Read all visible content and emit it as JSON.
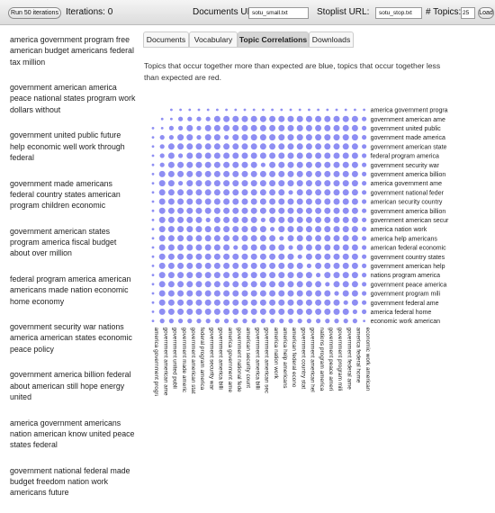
{
  "toolbar": {
    "run_button": "Run 50 iterations",
    "iterations_text": "Iterations: 0",
    "documents_url_label": "Documents URL:",
    "documents_url_value": "sotu_small.txt",
    "stoplist_url_label": "Stoplist URL:",
    "stoplist_url_value": "sotu_stop.txt",
    "num_topics_label": "# Topics:",
    "num_topics_value": "25",
    "load_button": "Load"
  },
  "topics": [
    "america government program free american budget americans federal tax million",
    "government american america peace national states program work dollars without",
    "government united public future help economic well work through federal",
    "government made americans federal country states american program children economic",
    "government american states program america fiscal budget about over million",
    "federal program america american americans made nation economic home economy",
    "government security war nations america american states economic peace policy",
    "government america billion federal about american still hope energy united",
    "america government americans nation american know united peace states federal",
    "government national federal made budget freedom nation work americans future"
  ],
  "tabs": [
    {
      "label": "Documents",
      "active": false
    },
    {
      "label": "Vocabulary",
      "active": false
    },
    {
      "label": "Topic Correlations",
      "active": true
    },
    {
      "label": "Downloads",
      "active": false
    }
  ],
  "description": "Topics that occur together more than expected are blue, topics that occur together less than expected are red.",
  "correlation": {
    "dot_color": "#8e8ef3",
    "row_labels": [
      "america government progra",
      "government american ame",
      "government united public",
      "government made america",
      "government american state",
      "federal program america",
      "government security war",
      "government america billion",
      "america government ame",
      "government national feder",
      "american security country",
      "government america billion",
      "government american secur",
      "america nation work",
      "america help americans",
      "american federal economic",
      "government country states",
      "government american help",
      "nations program america",
      "government peace america",
      "government program mili",
      "government federal ame",
      "america federal home",
      "economic work american"
    ],
    "col_labels": [
      "america government progra",
      "government american ame",
      "government united publi",
      "government made americ",
      "government american stat",
      "federal program america",
      "government security war",
      "government america billi",
      "america government ame",
      "government national fede",
      "american security count",
      "government america billi",
      "government american sec",
      "america nation work",
      "america help americans",
      "american federal econo",
      "government country stat",
      "government american hel",
      "nations program america",
      "government peace ameri",
      "government program mili",
      "government federal ame",
      "america federal home",
      "economic work american"
    ],
    "values": [
      [
        0,
        0,
        1,
        1,
        1,
        1,
        1,
        1,
        1,
        1,
        1,
        1,
        1,
        1,
        1,
        1,
        1,
        1,
        1,
        1,
        1,
        1,
        1,
        1
      ],
      [
        0,
        1,
        1,
        2,
        2,
        2,
        2,
        3,
        3,
        3,
        3,
        3,
        3,
        3,
        3,
        3,
        3,
        3,
        3,
        3,
        3,
        3,
        3,
        2
      ],
      [
        1,
        1,
        2,
        2,
        3,
        2,
        3,
        3,
        3,
        3,
        3,
        3,
        3,
        3,
        3,
        3,
        3,
        3,
        3,
        3,
        3,
        3,
        3,
        2
      ],
      [
        1,
        2,
        2,
        3,
        3,
        2,
        3,
        3,
        2,
        3,
        3,
        3,
        3,
        3,
        3,
        3,
        3,
        3,
        3,
        3,
        3,
        3,
        3,
        2
      ],
      [
        1,
        2,
        3,
        3,
        3,
        3,
        3,
        3,
        3,
        3,
        3,
        3,
        3,
        3,
        3,
        3,
        3,
        3,
        3,
        3,
        3,
        3,
        3,
        2
      ],
      [
        1,
        2,
        3,
        2,
        3,
        3,
        3,
        3,
        3,
        3,
        3,
        3,
        3,
        3,
        3,
        3,
        3,
        3,
        3,
        3,
        3,
        3,
        3,
        2
      ],
      [
        1,
        2,
        3,
        3,
        3,
        3,
        3,
        3,
        3,
        3,
        3,
        3,
        2,
        3,
        3,
        3,
        3,
        3,
        3,
        3,
        3,
        3,
        3,
        2
      ],
      [
        1,
        3,
        3,
        3,
        3,
        3,
        3,
        3,
        3,
        3,
        3,
        3,
        3,
        3,
        3,
        3,
        3,
        3,
        3,
        3,
        3,
        3,
        3,
        2
      ],
      [
        1,
        3,
        3,
        2,
        3,
        3,
        3,
        3,
        3,
        3,
        3,
        3,
        3,
        3,
        3,
        3,
        3,
        3,
        3,
        3,
        3,
        3,
        3,
        2
      ],
      [
        1,
        3,
        3,
        3,
        3,
        3,
        3,
        3,
        3,
        3,
        3,
        3,
        3,
        3,
        3,
        2,
        3,
        3,
        3,
        3,
        3,
        3,
        3,
        2
      ],
      [
        1,
        3,
        3,
        3,
        3,
        3,
        3,
        3,
        3,
        3,
        3,
        3,
        3,
        3,
        3,
        3,
        3,
        3,
        3,
        3,
        3,
        3,
        3,
        2
      ],
      [
        1,
        3,
        3,
        3,
        3,
        3,
        3,
        3,
        3,
        3,
        3,
        3,
        3,
        3,
        3,
        3,
        3,
        3,
        3,
        3,
        3,
        3,
        3,
        2
      ],
      [
        1,
        3,
        3,
        3,
        3,
        3,
        2,
        3,
        3,
        3,
        3,
        3,
        2,
        3,
        3,
        3,
        3,
        3,
        3,
        3,
        3,
        3,
        3,
        2
      ],
      [
        1,
        3,
        3,
        3,
        3,
        3,
        3,
        3,
        3,
        3,
        3,
        3,
        3,
        2,
        3,
        3,
        3,
        3,
        3,
        3,
        3,
        3,
        3,
        2
      ],
      [
        1,
        3,
        3,
        3,
        3,
        3,
        3,
        3,
        3,
        3,
        3,
        3,
        3,
        3,
        2,
        3,
        3,
        3,
        3,
        3,
        3,
        3,
        3,
        2
      ],
      [
        1,
        3,
        3,
        3,
        3,
        3,
        3,
        3,
        3,
        2,
        3,
        3,
        3,
        3,
        3,
        2,
        3,
        3,
        3,
        3,
        3,
        3,
        3,
        2
      ],
      [
        1,
        3,
        3,
        3,
        3,
        3,
        3,
        3,
        3,
        3,
        3,
        3,
        3,
        3,
        3,
        3,
        2,
        3,
        3,
        3,
        3,
        3,
        3,
        2
      ],
      [
        1,
        3,
        3,
        3,
        3,
        3,
        3,
        3,
        3,
        3,
        3,
        3,
        3,
        3,
        3,
        3,
        3,
        2,
        3,
        3,
        3,
        3,
        3,
        2
      ],
      [
        1,
        3,
        3,
        3,
        3,
        3,
        3,
        3,
        3,
        3,
        3,
        3,
        3,
        3,
        3,
        3,
        3,
        3,
        2,
        3,
        3,
        3,
        3,
        2
      ],
      [
        1,
        3,
        3,
        3,
        3,
        3,
        3,
        3,
        3,
        3,
        3,
        3,
        3,
        3,
        3,
        3,
        3,
        3,
        3,
        2,
        3,
        3,
        3,
        2
      ],
      [
        1,
        3,
        3,
        3,
        3,
        3,
        3,
        3,
        3,
        3,
        3,
        3,
        3,
        3,
        3,
        3,
        3,
        3,
        3,
        3,
        2,
        3,
        3,
        2
      ],
      [
        1,
        3,
        3,
        3,
        3,
        3,
        3,
        3,
        3,
        3,
        3,
        3,
        3,
        3,
        3,
        3,
        3,
        3,
        3,
        3,
        3,
        2,
        3,
        2
      ],
      [
        1,
        3,
        3,
        3,
        3,
        3,
        3,
        3,
        3,
        3,
        3,
        3,
        3,
        3,
        3,
        3,
        3,
        3,
        3,
        3,
        3,
        3,
        2,
        2
      ],
      [
        1,
        2,
        2,
        2,
        2,
        2,
        2,
        2,
        2,
        2,
        2,
        2,
        2,
        2,
        2,
        2,
        2,
        2,
        2,
        2,
        2,
        2,
        2,
        1
      ]
    ]
  }
}
